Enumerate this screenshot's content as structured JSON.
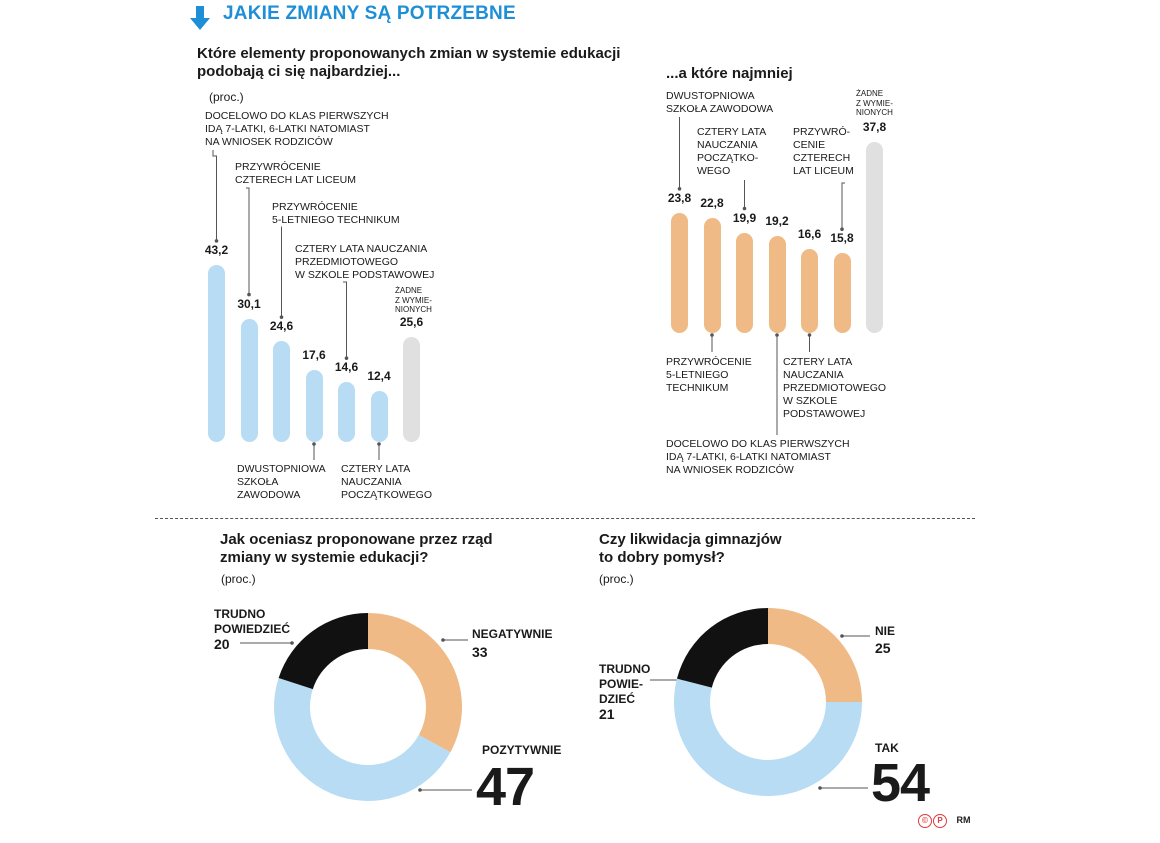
{
  "header": {
    "title": "JAKIE ZMIANY SĄ POTRZEBNE"
  },
  "colors": {
    "blue": "#b7dcf4",
    "orange": "#efba85",
    "gray": "#e0e0e0",
    "black": "#111111",
    "header": "#1e8fd6"
  },
  "chart_data": [
    {
      "type": "bar",
      "title": "Które elementy proponowanych zmian w systemie edukacji podobają ci się najbardziej...",
      "unit": "(proc.)",
      "categories": [
        "DOCELOWO DO KLAS PIERWSZYCH IDĄ 7-LATKI, 6-LATKI NATOMIAST NA WNIOSEK RODZICÓW",
        "PRZYWRÓCENIE CZTERECH LAT LICEUM",
        "PRZYWRÓCENIE 5-LETNIEGO TECHNIKUM",
        "DWUSTOPNIOWA SZKOŁA ZAWODOWA",
        "CZTERY LATA NAUCZANIA PRZEDMIOTOWEGO W SZKOLE PODSTAWOWEJ",
        "CZTERY LATA NAUCZANIA POCZĄTKOWEGO",
        "ŻADNE Z WYMIENIONYCH"
      ],
      "values": [
        43.2,
        30.1,
        24.6,
        17.6,
        14.6,
        12.4,
        25.6
      ],
      "value_labels": [
        "43,2",
        "30,1",
        "24,6",
        "17,6",
        "14,6",
        "12,4",
        "25,6"
      ],
      "ylim": [
        0,
        45
      ]
    },
    {
      "type": "bar",
      "title": "...a które najmniej",
      "categories": [
        "DWUSTOPNIOWA SZKOŁA ZAWODOWA",
        "PRZYWRÓCENIE 5-LETNIEGO TECHNIKUM",
        "CZTERY LATA NAUCZANIA POCZĄTKOWEGO",
        "DOCELOWO DO KLAS PIERWSZYCH IDĄ 7-LATKI, 6-LATKI NATOMIAST NA WNIOSEK RODZICÓW",
        "CZTERY LATA NAUCZANIA PRZEDMIOTOWEGO W SZKOLE PODSTAWOWEJ",
        "PRZYWRÓCENIE CZTERECH LAT LICEUM",
        "ŻADNE Z WYMIENIONYCH"
      ],
      "values": [
        23.8,
        22.8,
        19.9,
        19.2,
        16.6,
        15.8,
        37.8
      ],
      "value_labels": [
        "23,8",
        "22,8",
        "19,9",
        "19,2",
        "16,6",
        "15,8",
        "37,8"
      ],
      "ylim": [
        0,
        45
      ]
    },
    {
      "type": "pie",
      "title": "Jak oceniasz proponowane przez rząd zmiany w systemie edukacji?",
      "unit": "(proc.)",
      "labels": [
        "NEGATYWNIE",
        "POZYTYWNIE",
        "TRUDNO POWIEDZIEĆ"
      ],
      "values": [
        33,
        47,
        20
      ]
    },
    {
      "type": "pie",
      "title": "Czy likwidacja gimnazjów to dobry pomysł?",
      "unit": "(proc.)",
      "labels": [
        "NIE",
        "TAK",
        "TRUDNO POWIEDZIEĆ"
      ],
      "values": [
        25,
        54,
        21
      ]
    }
  ],
  "text": {
    "q1_title": "Które elementy proponowanych zmian w systemie edukacji\npodobają ci się najbardziej...",
    "q1_unit": "(proc.)",
    "q2_title": "...a które najmniej",
    "q3_title": "Jak oceniasz proponowane przez rząd\nzmiany w systemie edukacji?",
    "q3_unit": "(proc.)",
    "q4_title": "Czy likwidacja gimnazjów\nto dobry pomysł?",
    "q4_unit": "(proc.)",
    "left_labels": {
      "l0": "DOCELOWO DO KLAS PIERWSZYCH\nIDĄ 7-LATKI, 6-LATKI NATOMIAST\nNA WNIOSEK RODZICÓW",
      "l1": "PRZYWRÓCENIE\nCZTERECH LAT LICEUM",
      "l2": "PRZYWRÓCENIE\n5-LETNIEGO TECHNIKUM",
      "l3": "DWUSTOPNIOWA\nSZKOŁA\nZAWODOWA",
      "l4": "CZTERY LATA NAUCZANIA\nPRZEDMIOTOWEGO\nW SZKOLE PODSTAWOWEJ",
      "l5": "CZTERY LATA\nNAUCZANIA\nPOCZĄTKOWEGO",
      "l6": "ŻADNE\nZ WYMIE-\nNIONYCH"
    },
    "right_labels": {
      "r0": "DWUSTOPNIOWA\nSZKOŁA ZAWODOWA",
      "r1": "PRZYWRÓCENIE\n5-LETNIEGO\nTECHNIKUM",
      "r2": "CZTERY LATA\nNAUCZANIA\nPOCZĄTKO-\nWEGO",
      "r3": "DOCELOWO DO KLAS PIERWSZYCH\nIDĄ 7-LATKI, 6-LATKI NATOMIAST\nNA WNIOSEK RODZICÓW",
      "r4": "CZTERY LATA\nNAUCZANIA\nPRZEDMIOTOWEGO\nW SZKOLE\nPODSTAWOWEJ",
      "r5": "PRZYWRÓ-\nCENIE\nCZTERECH\nLAT LICEUM",
      "r6": "ŻADNE\nZ WYMIE-\nNIONYCH"
    },
    "d1": {
      "neg_label": "NEGATYWNIE",
      "neg_val": "33",
      "pos_label": "POZYTYWNIE",
      "pos_val": "47",
      "tp_label": "TRUDNO\nPOWIEDZIEĆ",
      "tp_val": "20"
    },
    "d2": {
      "nie_label": "NIE",
      "nie_val": "25",
      "tak_label": "TAK",
      "tak_val": "54",
      "tp_label": "TRUDNO\nPOWIE-\nDZIEĆ",
      "tp_val": "21"
    }
  },
  "credit": {
    "cp": "CP",
    "author": "RM"
  }
}
